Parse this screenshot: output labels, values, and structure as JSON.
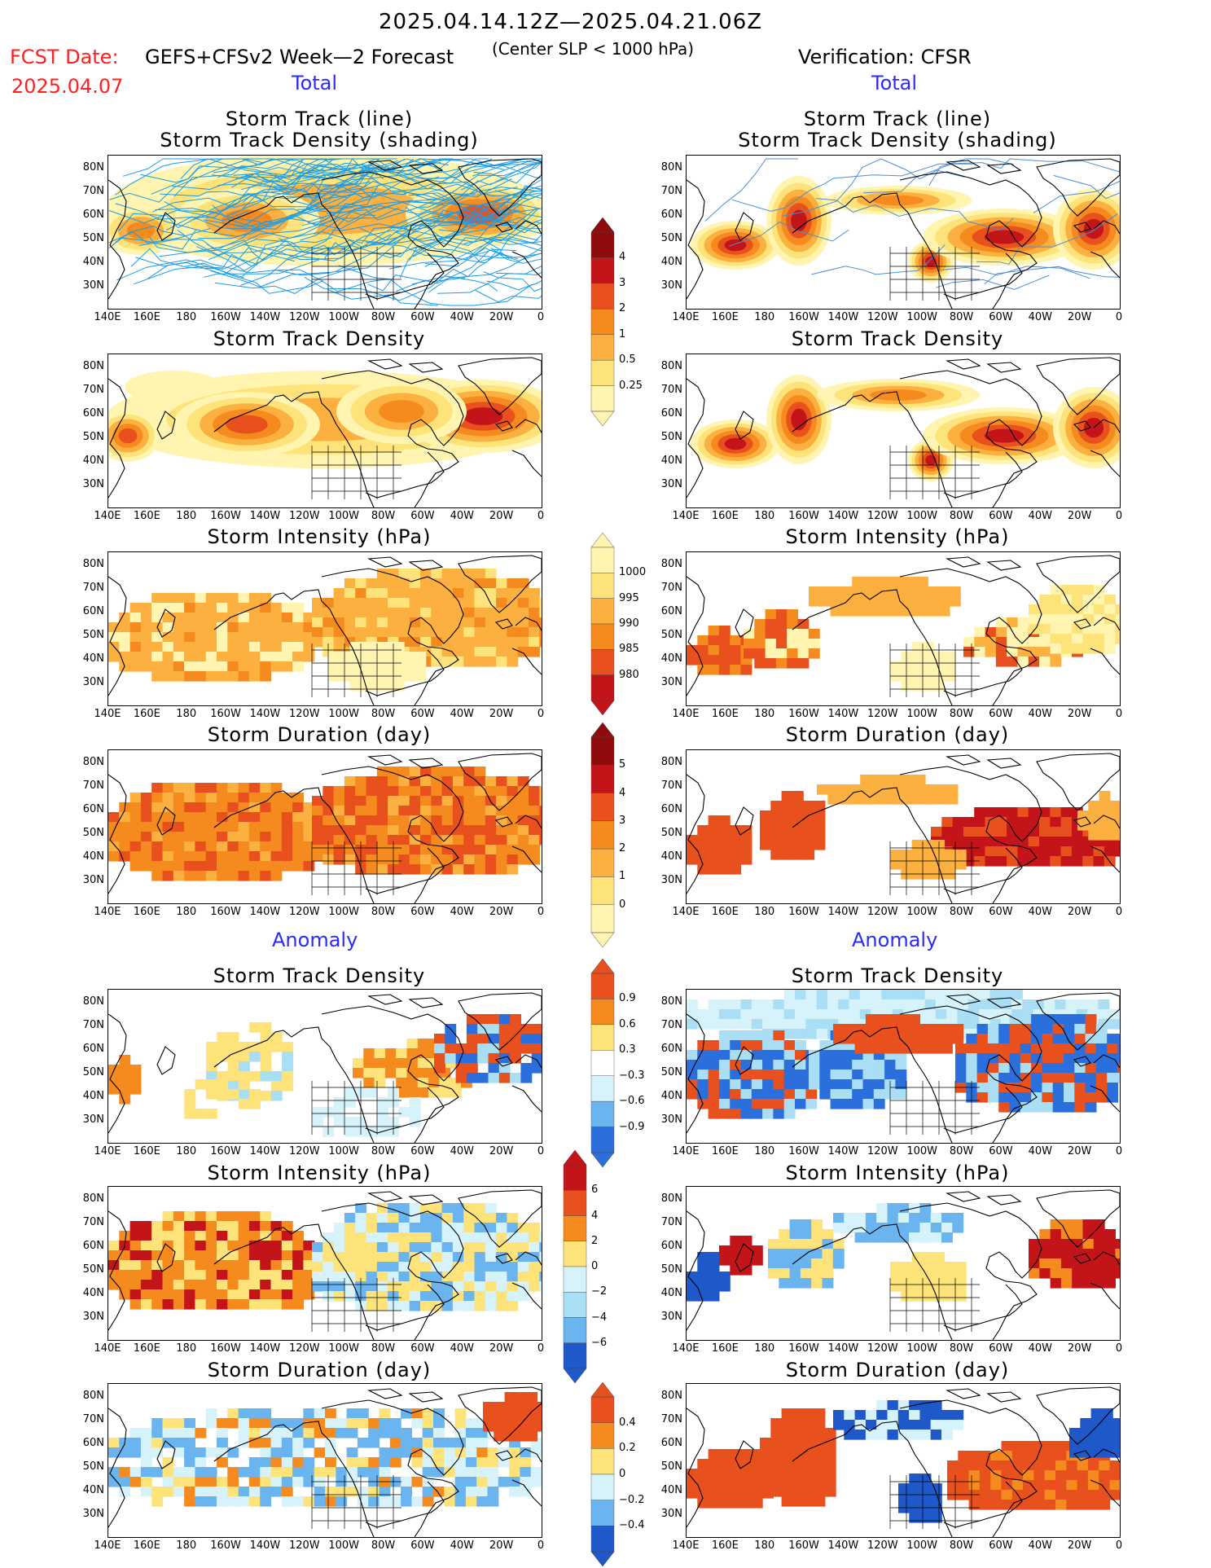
{
  "header": {
    "period": "2025.04.14.12Z—2025.04.21.06Z",
    "fcst_label": "FCST Date:",
    "fcst_date": "2025.04.07",
    "forecast_name": "GEFS+CFSv2 Week—2 Forecast",
    "center_note": "(Center SLP < 1000 hPa)",
    "verification": "Verification: CFSR"
  },
  "sections": {
    "total": "Total",
    "anomaly": "Anomaly"
  },
  "panel_titles": {
    "track_line": "Storm Track (line)",
    "track_shading": "Storm Track Density (shading)",
    "density": "Storm Track Density",
    "intensity": "Storm Intensity (hPa)",
    "duration": "Storm Duration (day)"
  },
  "axes": {
    "lat_labels": [
      "80N",
      "70N",
      "60N",
      "50N",
      "40N",
      "30N"
    ],
    "lon_labels": [
      "140E",
      "160E",
      "180",
      "160W",
      "140W",
      "120W",
      "100W",
      "80W",
      "60W",
      "40W",
      "20W",
      "0"
    ]
  },
  "colorbars": {
    "density_total": [
      "4",
      "3",
      "2",
      "1",
      "0.5",
      "0.25"
    ],
    "intensity_total": [
      "1000",
      "995",
      "990",
      "985",
      "980"
    ],
    "duration_total": [
      "5",
      "4",
      "3",
      "2",
      "1",
      "0"
    ],
    "density_anom": [
      "0.9",
      "0.6",
      "0.3",
      "−0.3",
      "−0.6",
      "−0.9"
    ],
    "intensity_anom": [
      "6",
      "4",
      "2",
      "0",
      "−2",
      "−4",
      "−6"
    ],
    "duration_anom": [
      "0.4",
      "0.2",
      "0",
      "−0.2",
      "−0.4"
    ]
  },
  "colors": {
    "warm": [
      "#fff4b0",
      "#fde37a",
      "#fbb040",
      "#f58a1e",
      "#e8501e",
      "#c3141a",
      "#8f0a0a"
    ],
    "cool": [
      "#d6f2fb",
      "#a9def5",
      "#6ab4ef",
      "#2a6fdc",
      "#1f58c8"
    ],
    "track": "#1c9be6",
    "track_obs": "#4a8fd6"
  }
}
